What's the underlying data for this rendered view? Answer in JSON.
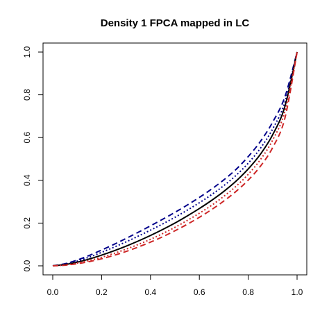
{
  "chart_data": {
    "type": "line",
    "title": "Density 1 FPCA mapped in LC",
    "xlabel": "",
    "ylabel": "",
    "xlim": [
      0,
      1
    ],
    "ylim": [
      0,
      1
    ],
    "x_ticks": [
      "0.0",
      "0.2",
      "0.4",
      "0.6",
      "0.8",
      "1.0"
    ],
    "y_ticks": [
      "0.0",
      "0.2",
      "0.4",
      "0.6",
      "0.8",
      "1.0"
    ],
    "grid": false,
    "legend": "none",
    "x": [
      0,
      0.05,
      0.1,
      0.15,
      0.2,
      0.25,
      0.3,
      0.35,
      0.4,
      0.45,
      0.5,
      0.55,
      0.6,
      0.65,
      0.7,
      0.75,
      0.8,
      0.85,
      0.9,
      0.95,
      1.0
    ],
    "series": [
      {
        "color": "#00008B",
        "dash": "dashed",
        "values": [
          0,
          0.01,
          0.027,
          0.049,
          0.074,
          0.1,
          0.128,
          0.157,
          0.187,
          0.218,
          0.25,
          0.284,
          0.32,
          0.359,
          0.402,
          0.451,
          0.511,
          0.582,
          0.672,
          0.79,
          1.0
        ]
      },
      {
        "color": "#00008B",
        "dash": "dotted",
        "values": [
          0,
          0.008,
          0.022,
          0.041,
          0.063,
          0.087,
          0.112,
          0.139,
          0.167,
          0.196,
          0.227,
          0.26,
          0.295,
          0.333,
          0.375,
          0.423,
          0.48,
          0.55,
          0.64,
          0.765,
          1.0
        ]
      },
      {
        "color": "#000000",
        "dash": "solid",
        "values": [
          0,
          0.006,
          0.017,
          0.032,
          0.05,
          0.07,
          0.092,
          0.116,
          0.142,
          0.17,
          0.2,
          0.233,
          0.268,
          0.306,
          0.348,
          0.396,
          0.453,
          0.522,
          0.613,
          0.745,
          1.0
        ]
      },
      {
        "color": "#CD2626",
        "dash": "dotted",
        "values": [
          0,
          0.004,
          0.013,
          0.025,
          0.04,
          0.058,
          0.078,
          0.1,
          0.124,
          0.151,
          0.18,
          0.212,
          0.246,
          0.283,
          0.325,
          0.372,
          0.428,
          0.497,
          0.588,
          0.722,
          1.0
        ]
      },
      {
        "color": "#CD2626",
        "dash": "dashed",
        "values": [
          0,
          0.003,
          0.01,
          0.02,
          0.033,
          0.049,
          0.067,
          0.088,
          0.111,
          0.136,
          0.164,
          0.194,
          0.227,
          0.263,
          0.303,
          0.348,
          0.401,
          0.466,
          0.553,
          0.69,
          1.0
        ]
      }
    ]
  }
}
